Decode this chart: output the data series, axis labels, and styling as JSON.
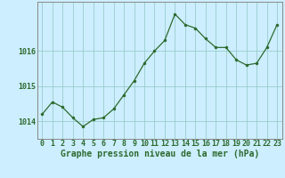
{
  "x": [
    0,
    1,
    2,
    3,
    4,
    5,
    6,
    7,
    8,
    9,
    10,
    11,
    12,
    13,
    14,
    15,
    16,
    17,
    18,
    19,
    20,
    21,
    22,
    23
  ],
  "y": [
    1014.2,
    1014.55,
    1014.4,
    1014.1,
    1013.85,
    1014.05,
    1014.1,
    1014.35,
    1014.75,
    1015.15,
    1015.65,
    1016.0,
    1016.3,
    1017.05,
    1016.75,
    1016.65,
    1016.35,
    1016.1,
    1016.1,
    1015.75,
    1015.6,
    1015.65,
    1016.1,
    1016.75
  ],
  "line_color": "#2d6a2d",
  "marker": "o",
  "marker_size": 2.2,
  "bg_color": "#cceeff",
  "grid_color": "#99cccc",
  "xlabel": "Graphe pression niveau de la mer (hPa)",
  "xlabel_fontsize": 7.0,
  "tick_fontsize": 6.0,
  "ytick_labels": [
    "1014",
    "1015",
    "1016"
  ],
  "ylim": [
    1013.5,
    1017.4
  ],
  "xlim": [
    -0.5,
    23.5
  ],
  "yticks": [
    1014,
    1015,
    1016
  ],
  "xticks": [
    0,
    1,
    2,
    3,
    4,
    5,
    6,
    7,
    8,
    9,
    10,
    11,
    12,
    13,
    14,
    15,
    16,
    17,
    18,
    19,
    20,
    21,
    22,
    23
  ]
}
